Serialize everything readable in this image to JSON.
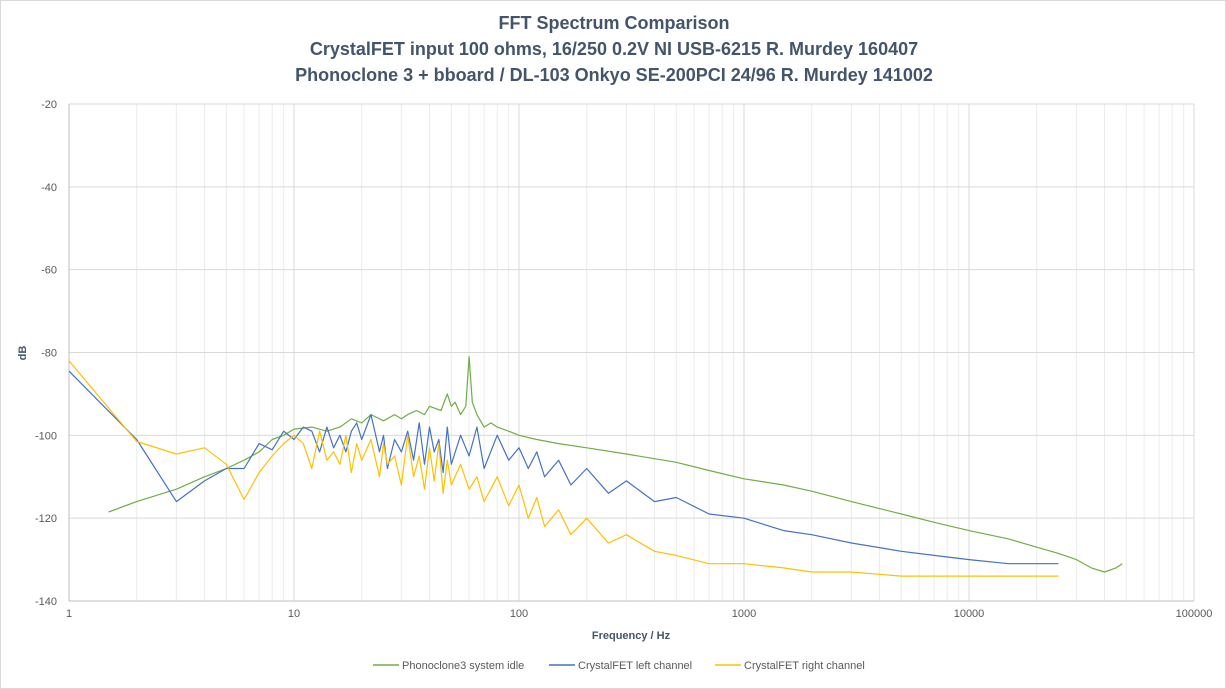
{
  "chart_data": {
    "type": "line",
    "title": "FFT Spectrum  Comparison",
    "subtitle_lines": [
      "CrystalFET  input  100 ohms,  16/250 0.2V NI USB-6215 R. Murdey 160407",
      "Phonoclone  3 + bboard  / DL-103 Onkyo SE-200PCI 24/96 R. Murdey 141002"
    ],
    "xlabel": "Frequency  / Hz",
    "ylabel": "dB",
    "x_scale": "log",
    "xlim": [
      1,
      100000
    ],
    "ylim": [
      -140,
      -20
    ],
    "x_ticks": [
      "1",
      "10",
      "100",
      "1000",
      "10000",
      "100000"
    ],
    "y_ticks": [
      "-20",
      "-40",
      "-60",
      "-80",
      "-100",
      "-120",
      "-140"
    ],
    "grid": true,
    "legend_position": "bottom",
    "series": [
      {
        "name": "Phonoclone3 system idle",
        "color": "#70ad47",
        "x": [
          1.5,
          2,
          3,
          4,
          5,
          6,
          7,
          8,
          9,
          10,
          12,
          14,
          16,
          18,
          20,
          22,
          25,
          28,
          30,
          32,
          35,
          38,
          40,
          45,
          48,
          50,
          52,
          55,
          58,
          60,
          62,
          65,
          70,
          75,
          80,
          90,
          100,
          120,
          150,
          200,
          300,
          500,
          700,
          1000,
          1500,
          2000,
          3000,
          5000,
          7000,
          10000,
          15000,
          20000,
          25000,
          30000,
          35000,
          40000,
          45000,
          48000
        ],
        "y": [
          -118.5,
          -116,
          -113,
          -110,
          -108,
          -106,
          -104,
          -101,
          -100,
          -98.5,
          -98,
          -99,
          -98,
          -96,
          -97,
          -95,
          -96.5,
          -95,
          -96,
          -95,
          -94,
          -95,
          -93,
          -94,
          -90,
          -93,
          -92,
          -95,
          -93,
          -81,
          -92,
          -95,
          -98,
          -97,
          -98,
          -99,
          -100,
          -101,
          -102,
          -103,
          -104.5,
          -106.5,
          -108.5,
          -110.5,
          -112,
          -113.5,
          -116,
          -119,
          -121,
          -123,
          -125,
          -127,
          -128.5,
          -130,
          -132,
          -133,
          -132,
          -131
        ]
      },
      {
        "name": "CrystalFET left channel",
        "color": "#4472c4",
        "x": [
          1,
          2,
          3,
          4,
          5,
          6,
          7,
          8,
          9,
          10,
          11,
          12,
          13,
          14,
          15,
          16,
          17,
          18,
          19,
          20,
          22,
          24,
          25,
          26,
          28,
          30,
          32,
          34,
          36,
          38,
          40,
          42,
          44,
          46,
          48,
          50,
          55,
          60,
          65,
          70,
          80,
          90,
          100,
          110,
          120,
          130,
          150,
          170,
          200,
          250,
          300,
          400,
          500,
          700,
          1000,
          1500,
          2000,
          3000,
          5000,
          7000,
          10000,
          15000,
          20000,
          25000
        ],
        "y": [
          -84.5,
          -101,
          -116,
          -111,
          -108,
          -108,
          -102,
          -103.5,
          -99,
          -101,
          -98,
          -99,
          -104,
          -98,
          -103,
          -100,
          -104,
          -99,
          -97,
          -101,
          -95,
          -104,
          -100,
          -108,
          -101,
          -104,
          -99,
          -106,
          -97,
          -107,
          -98,
          -104,
          -101,
          -109,
          -98,
          -107,
          -100,
          -105,
          -98,
          -108,
          -100,
          -106,
          -103,
          -108,
          -104,
          -110,
          -106,
          -112,
          -108,
          -114,
          -111,
          -116,
          -115,
          -119,
          -120,
          -123,
          -124,
          -126,
          -128,
          -129,
          -130,
          -131,
          -131,
          -131
        ]
      },
      {
        "name": "CrystalFET right channel",
        "color": "#ffc000",
        "x": [
          1,
          2,
          3,
          4,
          5,
          6,
          7,
          8,
          9,
          10,
          11,
          12,
          13,
          14,
          15,
          16,
          17,
          18,
          19,
          20,
          22,
          24,
          25,
          26,
          28,
          30,
          32,
          34,
          36,
          38,
          40,
          42,
          44,
          46,
          48,
          50,
          55,
          60,
          65,
          70,
          80,
          90,
          100,
          110,
          120,
          130,
          150,
          170,
          200,
          250,
          300,
          400,
          500,
          700,
          1000,
          1500,
          2000,
          3000,
          5000,
          7000,
          10000,
          15000,
          20000,
          25000
        ],
        "y": [
          -82,
          -101.5,
          -104.5,
          -103,
          -107,
          -115.5,
          -109,
          -105,
          -102,
          -100,
          -102,
          -108,
          -99,
          -106,
          -104,
          -107,
          -100,
          -109,
          -102,
          -106,
          -101,
          -110,
          -102,
          -107,
          -105,
          -112,
          -100,
          -110,
          -105,
          -113,
          -103,
          -111,
          -102,
          -114,
          -106,
          -112,
          -107,
          -113,
          -110,
          -116,
          -110,
          -117,
          -112,
          -120,
          -115,
          -122,
          -118,
          -124,
          -120,
          -126,
          -124,
          -128,
          -129,
          -131,
          -131,
          -132,
          -133,
          -133,
          -134,
          -134,
          -134,
          -134,
          -134,
          -134
        ]
      }
    ]
  }
}
